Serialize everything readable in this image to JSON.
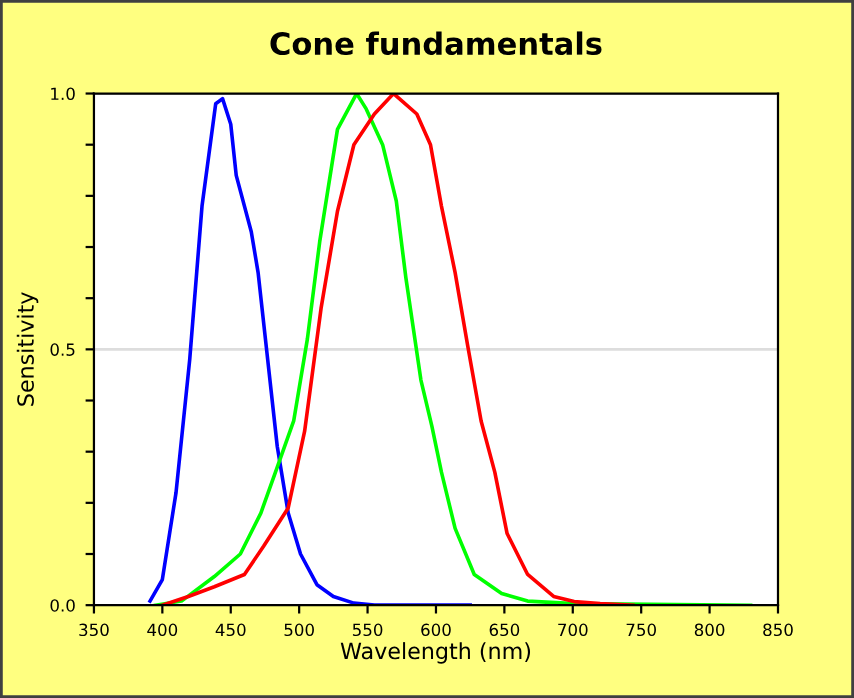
{
  "chart_data": {
    "type": "line",
    "title": "Cone fundamentals",
    "xlabel": "Wavelength (nm)",
    "ylabel": "Sensitivity",
    "xlim": [
      350,
      850
    ],
    "xticks": [
      350,
      400,
      450,
      500,
      550,
      600,
      650,
      700,
      750,
      800,
      850
    ],
    "ylim": [
      0,
      1.0
    ],
    "yticks": [
      {
        "value": 0,
        "label": "0.0"
      },
      {
        "value": 0.1,
        "label": null
      },
      {
        "value": 0.2,
        "label": null
      },
      {
        "value": 0.3,
        "label": null
      },
      {
        "value": 0.4,
        "label": null
      },
      {
        "value": 0.5,
        "label": "0.5"
      },
      {
        "value": 0.6,
        "label": null
      },
      {
        "value": 0.7,
        "label": null
      },
      {
        "value": 0.8,
        "label": null
      },
      {
        "value": 0.9,
        "label": null
      },
      {
        "value": 1.0,
        "label": "1.0"
      }
    ],
    "grid": "y",
    "legend": false,
    "series": [
      {
        "color": "#0000ff",
        "x": [
          391,
          400,
          410,
          420,
          429,
          439,
          444,
          450,
          454,
          465,
          470,
          477,
          484,
          492,
          501,
          513,
          525,
          540,
          555,
          625
        ],
        "values": [
          0.008,
          0.05,
          0.22,
          0.48,
          0.78,
          0.98,
          0.99,
          0.94,
          0.84,
          0.73,
          0.65,
          0.48,
          0.31,
          0.18,
          0.1,
          0.04,
          0.017,
          0.004,
          0,
          0
        ]
      },
      {
        "color": "#00ff00",
        "x": [
          395,
          414,
          438,
          457,
          472,
          484,
          496,
          506,
          515,
          528,
          542,
          549,
          561,
          571,
          578,
          589,
          597,
          604,
          614,
          628,
          648,
          667,
          701,
          830
        ],
        "values": [
          0,
          0.008,
          0.056,
          0.1,
          0.18,
          0.27,
          0.36,
          0.52,
          0.71,
          0.93,
          1.0,
          0.97,
          0.9,
          0.79,
          0.64,
          0.44,
          0.35,
          0.26,
          0.15,
          0.06,
          0.023,
          0.008,
          0.003,
          0
        ]
      },
      {
        "color": "#ff0000",
        "x": [
          400,
          419,
          438,
          460,
          474,
          492,
          504,
          516,
          528,
          540,
          555,
          569,
          586,
          596,
          604,
          614,
          623,
          633,
          643,
          652,
          667,
          686,
          701,
          720,
          744
        ],
        "values": [
          0,
          0.017,
          0.036,
          0.06,
          0.115,
          0.19,
          0.34,
          0.58,
          0.77,
          0.9,
          0.96,
          1.0,
          0.96,
          0.9,
          0.78,
          0.65,
          0.51,
          0.36,
          0.26,
          0.14,
          0.06,
          0.017,
          0.007,
          0.003,
          0
        ]
      }
    ]
  }
}
